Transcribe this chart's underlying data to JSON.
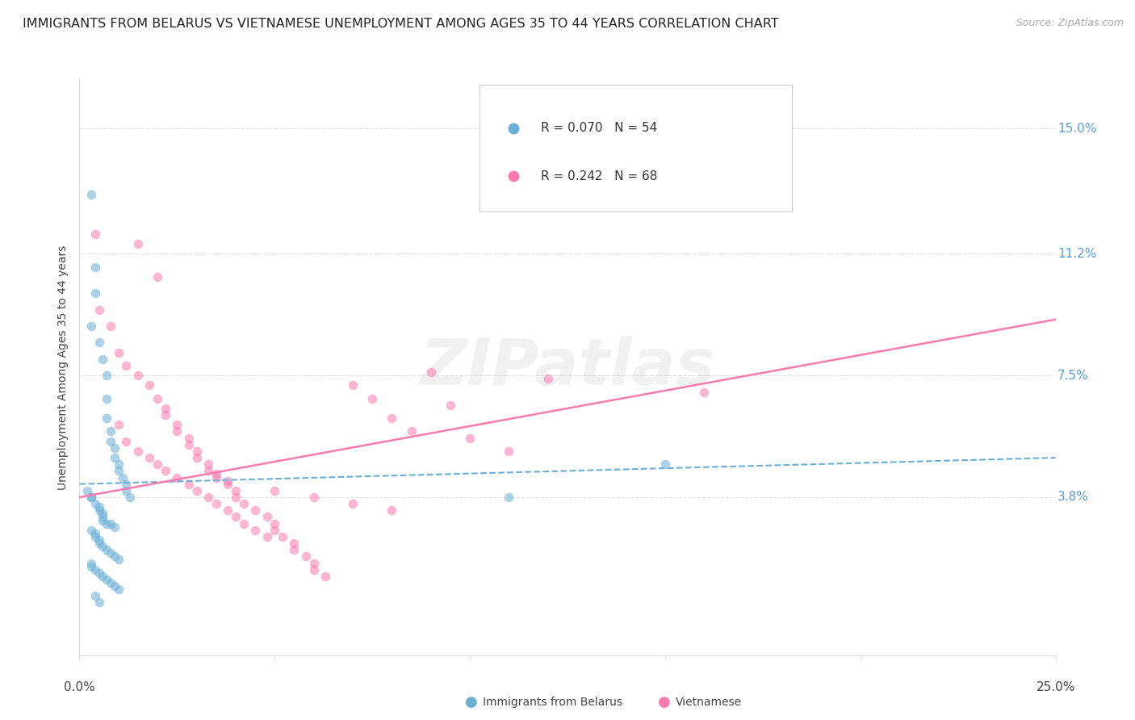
{
  "title": "IMMIGRANTS FROM BELARUS VS VIETNAMESE UNEMPLOYMENT AMONG AGES 35 TO 44 YEARS CORRELATION CHART",
  "source": "Source: ZipAtlas.com",
  "ylabel": "Unemployment Among Ages 35 to 44 years",
  "ytick_labels": [
    "15.0%",
    "11.2%",
    "7.5%",
    "3.8%"
  ],
  "ytick_values": [
    0.15,
    0.112,
    0.075,
    0.038
  ],
  "xlim": [
    0.0,
    0.25
  ],
  "ylim": [
    -0.01,
    0.165
  ],
  "legend1_r": "0.070",
  "legend1_n": "54",
  "legend2_r": "0.242",
  "legend2_n": "68",
  "legend1_color": "#6baed6",
  "legend2_color": "#f97bb0",
  "watermark": "ZIPatlas",
  "blue_scatter_x": [
    0.003,
    0.004,
    0.004,
    0.003,
    0.005,
    0.006,
    0.007,
    0.007,
    0.007,
    0.008,
    0.008,
    0.009,
    0.009,
    0.01,
    0.01,
    0.011,
    0.012,
    0.012,
    0.013,
    0.003,
    0.004,
    0.005,
    0.005,
    0.006,
    0.006,
    0.006,
    0.007,
    0.008,
    0.009,
    0.003,
    0.004,
    0.004,
    0.005,
    0.005,
    0.006,
    0.007,
    0.008,
    0.009,
    0.01,
    0.003,
    0.003,
    0.004,
    0.005,
    0.006,
    0.007,
    0.008,
    0.009,
    0.01,
    0.002,
    0.003,
    0.15,
    0.11,
    0.004,
    0.005
  ],
  "blue_scatter_y": [
    0.13,
    0.108,
    0.1,
    0.09,
    0.085,
    0.08,
    0.075,
    0.068,
    0.062,
    0.058,
    0.055,
    0.053,
    0.05,
    0.048,
    0.046,
    0.044,
    0.042,
    0.04,
    0.038,
    0.038,
    0.036,
    0.035,
    0.034,
    0.033,
    0.032,
    0.031,
    0.03,
    0.03,
    0.029,
    0.028,
    0.027,
    0.026,
    0.025,
    0.024,
    0.023,
    0.022,
    0.021,
    0.02,
    0.019,
    0.018,
    0.017,
    0.016,
    0.015,
    0.014,
    0.013,
    0.012,
    0.011,
    0.01,
    0.04,
    0.038,
    0.048,
    0.038,
    0.008,
    0.006
  ],
  "pink_scatter_x": [
    0.004,
    0.005,
    0.008,
    0.01,
    0.012,
    0.015,
    0.015,
    0.018,
    0.02,
    0.02,
    0.022,
    0.022,
    0.025,
    0.025,
    0.028,
    0.028,
    0.03,
    0.03,
    0.033,
    0.033,
    0.035,
    0.035,
    0.038,
    0.038,
    0.04,
    0.04,
    0.042,
    0.045,
    0.048,
    0.05,
    0.05,
    0.052,
    0.055,
    0.055,
    0.058,
    0.06,
    0.06,
    0.063,
    0.01,
    0.012,
    0.015,
    0.018,
    0.02,
    0.022,
    0.025,
    0.028,
    0.03,
    0.033,
    0.035,
    0.038,
    0.04,
    0.042,
    0.045,
    0.048,
    0.12,
    0.16,
    0.09,
    0.095,
    0.07,
    0.075,
    0.08,
    0.085,
    0.1,
    0.11,
    0.05,
    0.06,
    0.07,
    0.08
  ],
  "pink_scatter_y": [
    0.118,
    0.095,
    0.09,
    0.082,
    0.078,
    0.075,
    0.115,
    0.072,
    0.068,
    0.105,
    0.065,
    0.063,
    0.06,
    0.058,
    0.056,
    0.054,
    0.052,
    0.05,
    0.048,
    0.046,
    0.045,
    0.044,
    0.043,
    0.042,
    0.04,
    0.038,
    0.036,
    0.034,
    0.032,
    0.03,
    0.028,
    0.026,
    0.024,
    0.022,
    0.02,
    0.018,
    0.016,
    0.014,
    0.06,
    0.055,
    0.052,
    0.05,
    0.048,
    0.046,
    0.044,
    0.042,
    0.04,
    0.038,
    0.036,
    0.034,
    0.032,
    0.03,
    0.028,
    0.026,
    0.074,
    0.07,
    0.076,
    0.066,
    0.072,
    0.068,
    0.062,
    0.058,
    0.056,
    0.052,
    0.04,
    0.038,
    0.036,
    0.034
  ],
  "blue_line_x": [
    0.0,
    0.25
  ],
  "blue_line_y": [
    0.042,
    0.05
  ],
  "pink_line_x": [
    0.0,
    0.25
  ],
  "pink_line_y": [
    0.038,
    0.092
  ],
  "grid_color": "#e0e0e0",
  "dot_size": 70,
  "dot_alpha": 0.55,
  "title_fontsize": 11.5,
  "label_fontsize": 10,
  "tick_fontsize": 11
}
